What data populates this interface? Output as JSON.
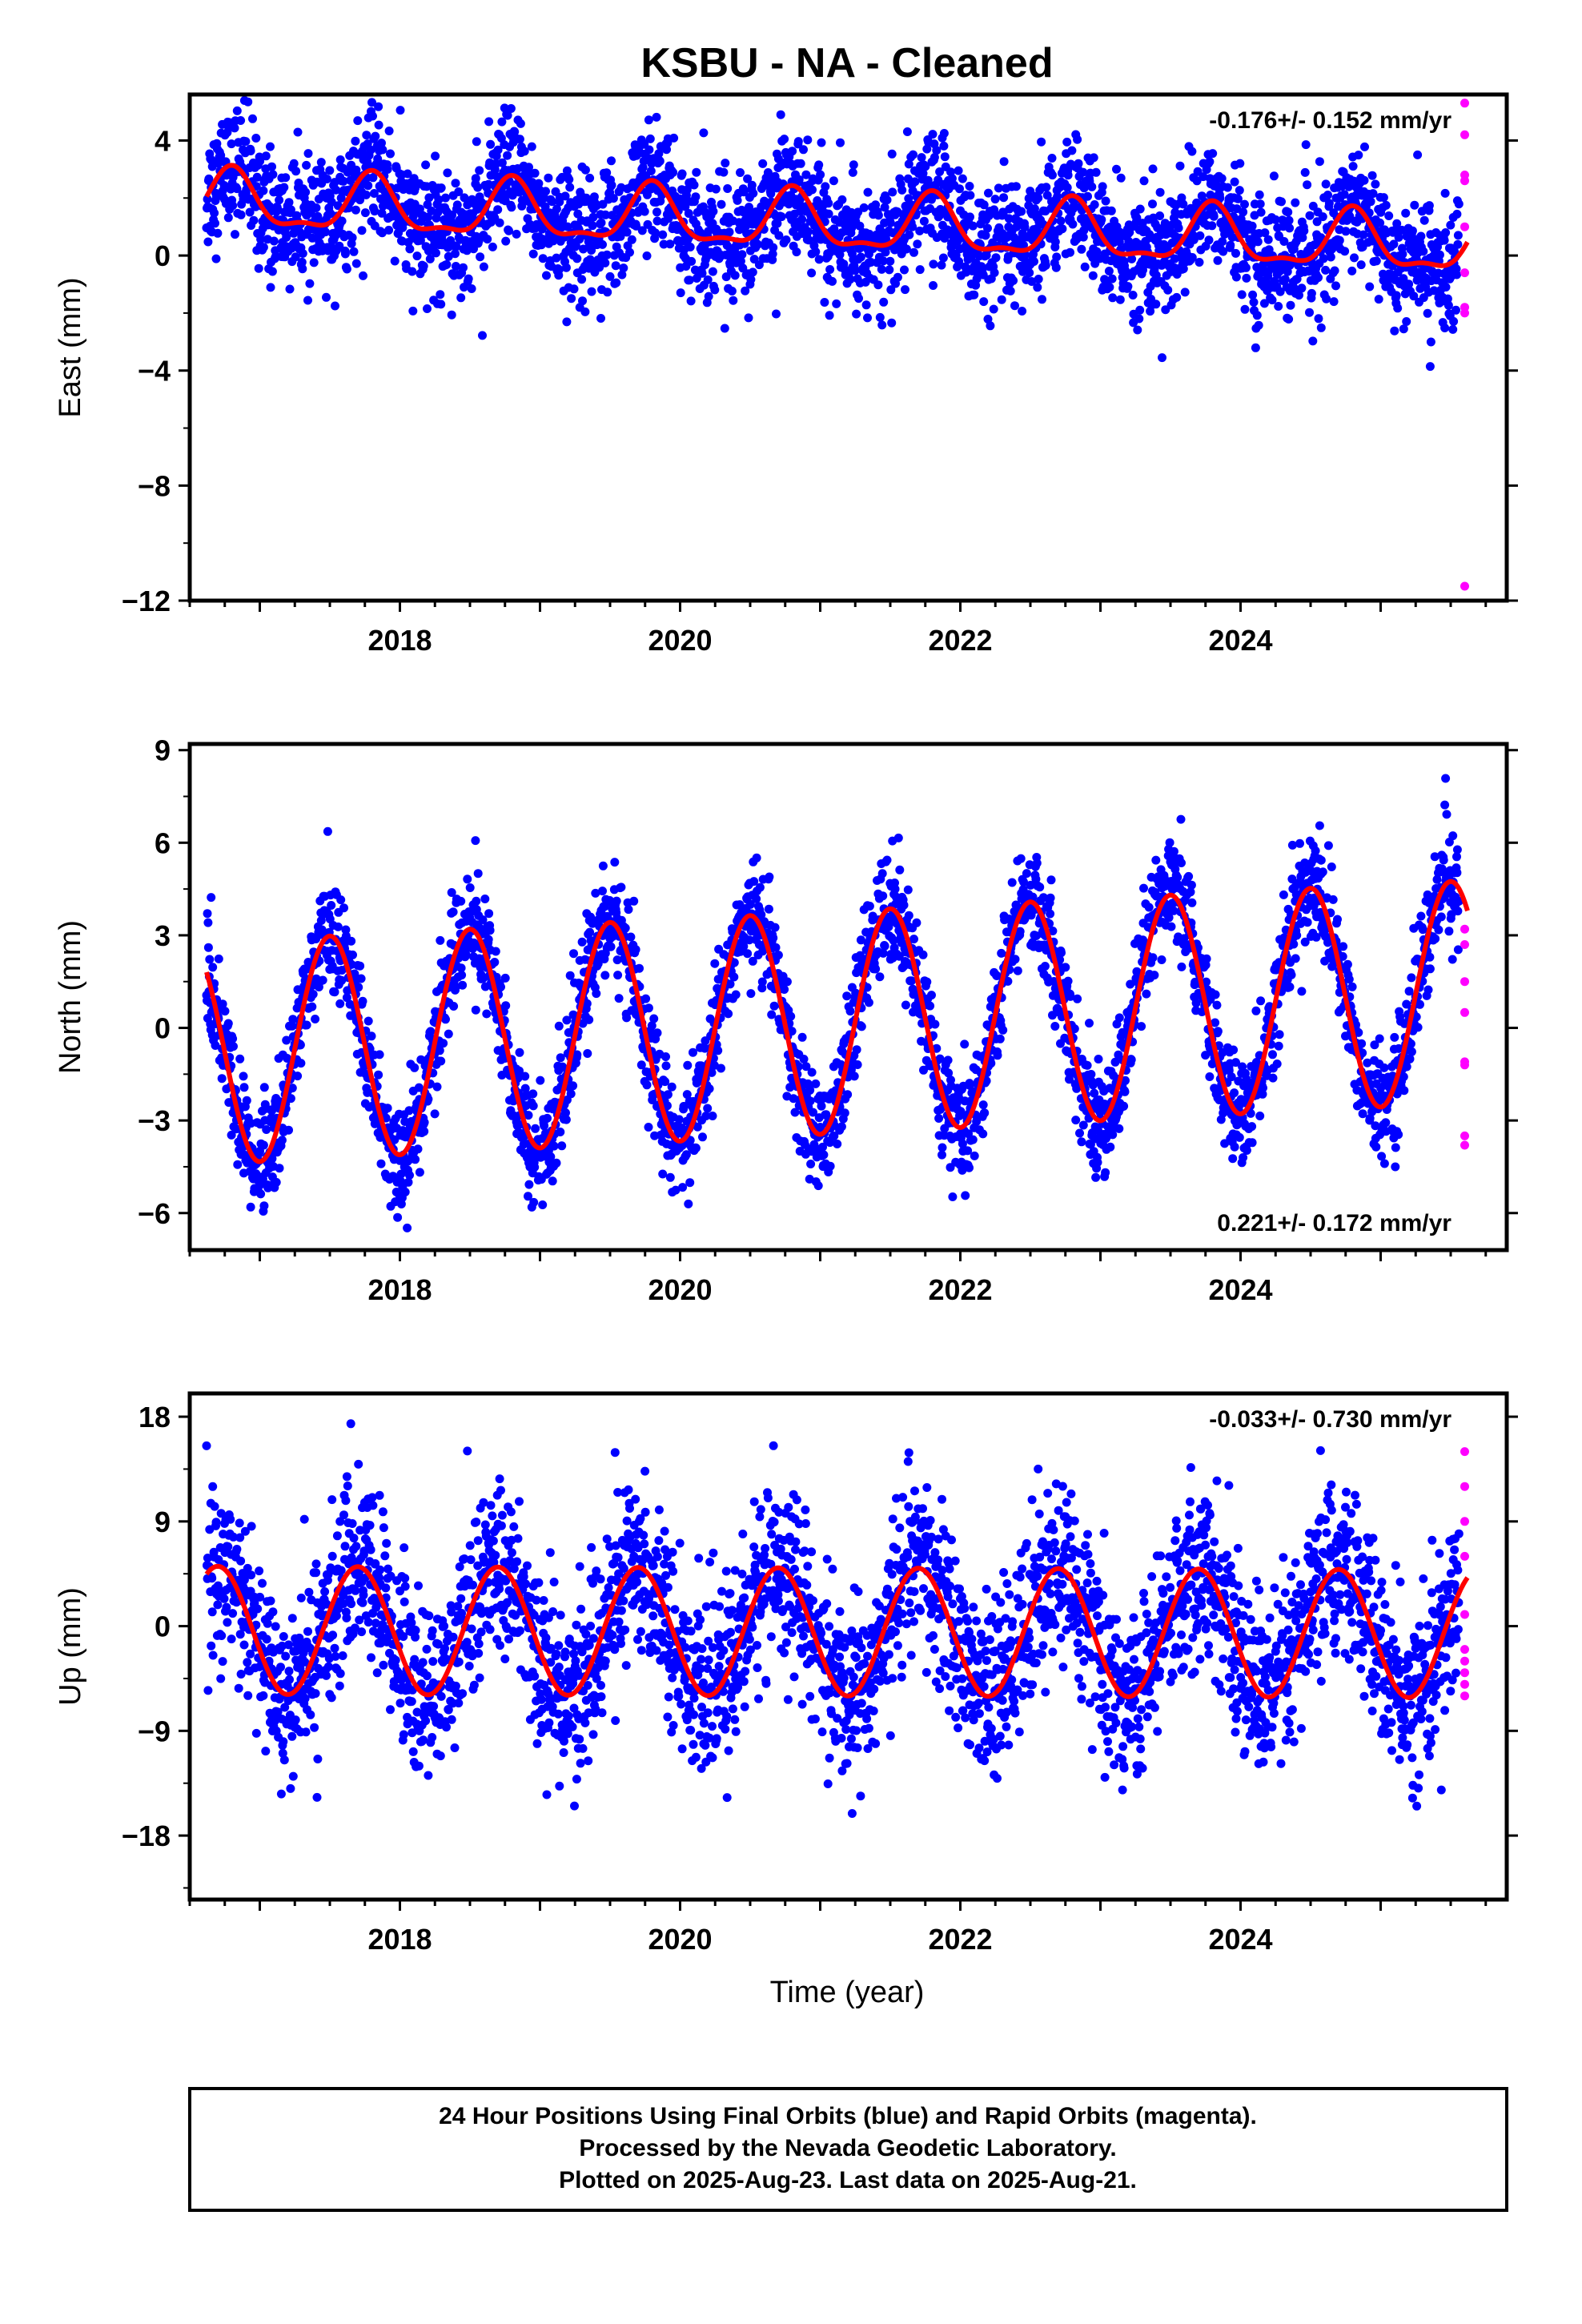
{
  "chart_data": {
    "type": "scatter",
    "title": "KSBU  - NA - Cleaned",
    "xlabel": "Time (year)",
    "x_range": [
      2016.5,
      2025.9
    ],
    "x_ticks": [
      2018,
      2020,
      2022,
      2024
    ],
    "colors": {
      "final": "#0000ff",
      "rapid": "#ff00ff",
      "fit": "#ff0000"
    },
    "panels": [
      {
        "ylabel": "East (mm)",
        "ylim": [
          -12,
          5.6
        ],
        "y_ticks": [
          4,
          0,
          -4,
          -8,
          -12
        ],
        "y_tick_labels": [
          "4",
          "0",
          "−4",
          "−8",
          "−12"
        ],
        "rate": "-0.176+/- 0.152 mm/yr",
        "rate_position": "top-right",
        "trend": -0.176,
        "offset": 1.1,
        "amp": 0.95,
        "phase_peak": 0.8,
        "semi_amp": 0.35,
        "noise": 1.05,
        "series_x_range": [
          2016.62,
          2025.56
        ],
        "rapid": {
          "x": 2025.6,
          "values": [
            5.3,
            4.2,
            2.8,
            2.6,
            1.0,
            -0.6,
            -1.8,
            -2.0,
            -11.5
          ]
        }
      },
      {
        "ylabel": "North (mm)",
        "ylim": [
          -7.2,
          9.2
        ],
        "y_ticks": [
          9,
          6,
          3,
          0,
          -3,
          -6
        ],
        "y_tick_labels": [
          "9",
          "6",
          "3",
          "0",
          "−3",
          "−6"
        ],
        "rate": "0.221+/- 0.172 mm/yr",
        "rate_position": "bottom-right",
        "trend": 0.221,
        "offset": 0.15,
        "amp": 3.6,
        "phase_peak": 0.5,
        "semi_amp": 0.0,
        "noise": 0.9,
        "series_x_range": [
          2016.62,
          2025.56
        ],
        "rapid": {
          "x": 2025.6,
          "values": [
            3.2,
            2.7,
            1.5,
            0.5,
            -1.1,
            -1.2,
            -3.5,
            -3.8
          ]
        }
      },
      {
        "ylabel": "Up (mm)",
        "ylim": [
          -23.5,
          20
        ],
        "y_ticks": [
          18,
          9,
          0,
          -9,
          -18
        ],
        "y_tick_labels": [
          "18",
          "9",
          "0",
          "−9",
          "−18"
        ],
        "rate": "-0.033+/- 0.730 mm/yr",
        "rate_position": "top-right",
        "trend": -0.033,
        "offset": -0.5,
        "amp": 5.5,
        "phase_peak": 0.7,
        "semi_amp": 0.0,
        "noise": 3.8,
        "series_x_range": [
          2016.62,
          2025.56
        ],
        "rapid": {
          "x": 2025.6,
          "values": [
            15.0,
            12.0,
            9.0,
            6.0,
            1.0,
            -2.0,
            -3.0,
            -4.0,
            -5.0,
            -6.0
          ]
        }
      }
    ]
  },
  "footer": {
    "line1": "24 Hour Positions Using Final Orbits (blue) and Rapid Orbits (magenta).",
    "line2": "Processed by the Nevada Geodetic Laboratory.",
    "line3": "Plotted on 2025-Aug-23. Last data on 2025-Aug-21."
  }
}
